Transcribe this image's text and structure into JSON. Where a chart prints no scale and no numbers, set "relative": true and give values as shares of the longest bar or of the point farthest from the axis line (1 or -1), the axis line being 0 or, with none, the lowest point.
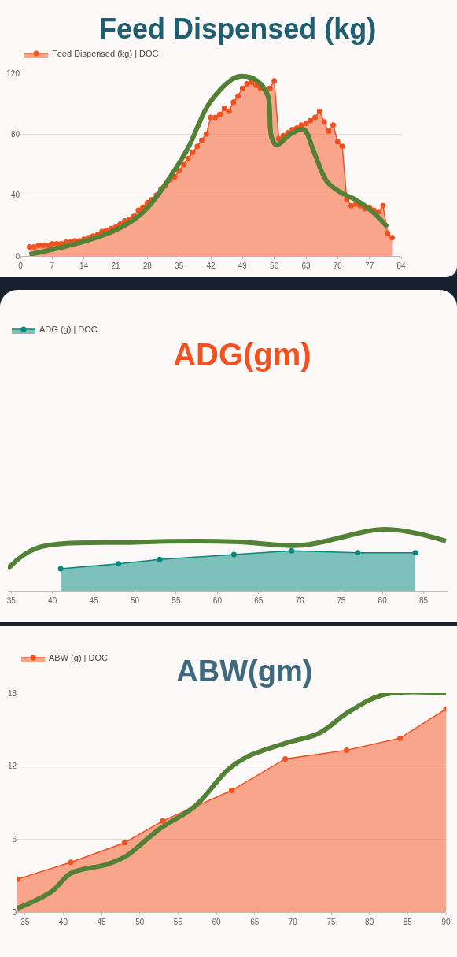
{
  "chart_data": [
    {
      "type": "area",
      "title": "Feed Dispensed (kg)",
      "xlim": [
        0,
        84
      ],
      "xticks": [
        0,
        7,
        14,
        21,
        28,
        35,
        42,
        49,
        56,
        63,
        70,
        77,
        84
      ],
      "ylim": [
        0,
        120
      ],
      "yticks": [
        0,
        40,
        80,
        120
      ],
      "grid": "y",
      "legend": "top left",
      "marker": "circle",
      "series": [
        {
          "name": "Feed Dispensed (kg) | DOC",
          "color": "#f4511e",
          "x": [
            2,
            3,
            4,
            5,
            6,
            7,
            8,
            9,
            10,
            11,
            12,
            13,
            14,
            15,
            16,
            17,
            18,
            19,
            20,
            21,
            22,
            23,
            24,
            25,
            26,
            27,
            28,
            29,
            30,
            31,
            32,
            33,
            34,
            35,
            36,
            37,
            38,
            39,
            40,
            41,
            42,
            43,
            44,
            45,
            46,
            47,
            48,
            49,
            50,
            51,
            52,
            53,
            54,
            55,
            56,
            57,
            58,
            59,
            60,
            61,
            62,
            63,
            64,
            65,
            66,
            67,
            68,
            69,
            70,
            71,
            72,
            73,
            74,
            75,
            76,
            77,
            78,
            79,
            80,
            81,
            82
          ],
          "values": [
            6,
            6,
            7,
            7,
            7,
            8,
            8,
            8,
            9,
            9,
            10,
            10,
            11,
            12,
            13,
            14,
            16,
            17,
            18,
            19,
            21,
            23,
            24,
            26,
            30,
            32,
            35,
            37,
            40,
            44,
            46,
            50,
            52,
            56,
            60,
            64,
            68,
            72,
            76,
            80,
            91,
            91,
            93,
            97,
            95,
            101,
            105,
            110,
            113,
            114,
            112,
            110,
            109,
            110,
            115,
            77,
            79,
            81,
            83,
            84,
            86,
            87,
            89,
            91,
            95,
            88,
            82,
            86,
            75,
            72,
            37,
            33,
            34,
            33,
            31,
            32,
            30,
            29,
            33,
            15,
            12
          ]
        },
        {
          "type": "line",
          "marker": "none",
          "color": "#538135",
          "x": [
            2,
            14,
            21,
            26,
            29,
            32.4,
            37,
            41.6,
            46.7,
            48.8,
            52.2,
            54.5,
            55.4,
            56.5,
            59.6,
            62.5,
            64.8,
            67.6,
            70.5,
            73.9,
            77.3,
            81
          ],
          "values": [
            1,
            9.5,
            17,
            26,
            35,
            49,
            71,
            100,
            116,
            118,
            115,
            106,
            78,
            73,
            80,
            83,
            68,
            49,
            42,
            37,
            30,
            19
          ]
        }
      ]
    },
    {
      "type": "area",
      "title": "ADG(gm)",
      "relative": true,
      "xlim": [
        34.6,
        87.9
      ],
      "xticks": [
        35,
        40,
        45,
        50,
        55,
        60,
        65,
        70,
        75,
        80,
        85
      ],
      "tick_labels": "x",
      "legend": "top left",
      "marker": "circle",
      "series": [
        {
          "name": "ADG (g) | DOC",
          "color": "#00897b",
          "x": [
            41,
            48,
            53,
            62,
            69,
            77,
            84
          ],
          "values": [
            0.36,
            0.44,
            0.51,
            0.59,
            0.65,
            0.62,
            0.62
          ]
        },
        {
          "type": "line",
          "marker": "none",
          "color": "#538135",
          "x": [
            34.6,
            38,
            50,
            62,
            70.2,
            80.4,
            87.7
          ],
          "values": [
            0.36,
            0.69,
            0.79,
            0.8,
            0.74,
            1,
            0.81
          ]
        }
      ]
    },
    {
      "type": "area",
      "title": "ABW(gm)",
      "xlim": [
        34,
        90
      ],
      "xticks": [
        35,
        40,
        45,
        50,
        55,
        60,
        65,
        70,
        75,
        80,
        85,
        90
      ],
      "ylim": [
        0,
        18
      ],
      "yticks": [
        0,
        6,
        12,
        18
      ],
      "grid": "y",
      "legend": "top left",
      "marker": "circle",
      "series": [
        {
          "name": "ABW (g) | DOC",
          "color": "#f4511e",
          "x": [
            34,
            41,
            48,
            53,
            62,
            69,
            77,
            84,
            90
          ],
          "values": [
            2.7,
            4.1,
            5.7,
            7.5,
            10,
            12.6,
            13.3,
            14.3,
            16.7
          ]
        },
        {
          "type": "line",
          "marker": "none",
          "color": "#538135",
          "x": [
            34,
            38.5,
            41,
            45.6,
            48.2,
            52.5,
            57.2,
            61.5,
            64.1,
            69.1,
            73.4,
            77.4,
            82,
            90
          ],
          "values": [
            0.3,
            1.7,
            3.2,
            3.9,
            4.6,
            6.8,
            8.7,
            11.7,
            12.8,
            13.9,
            14.7,
            16.5,
            17.9,
            18
          ]
        }
      ]
    }
  ]
}
